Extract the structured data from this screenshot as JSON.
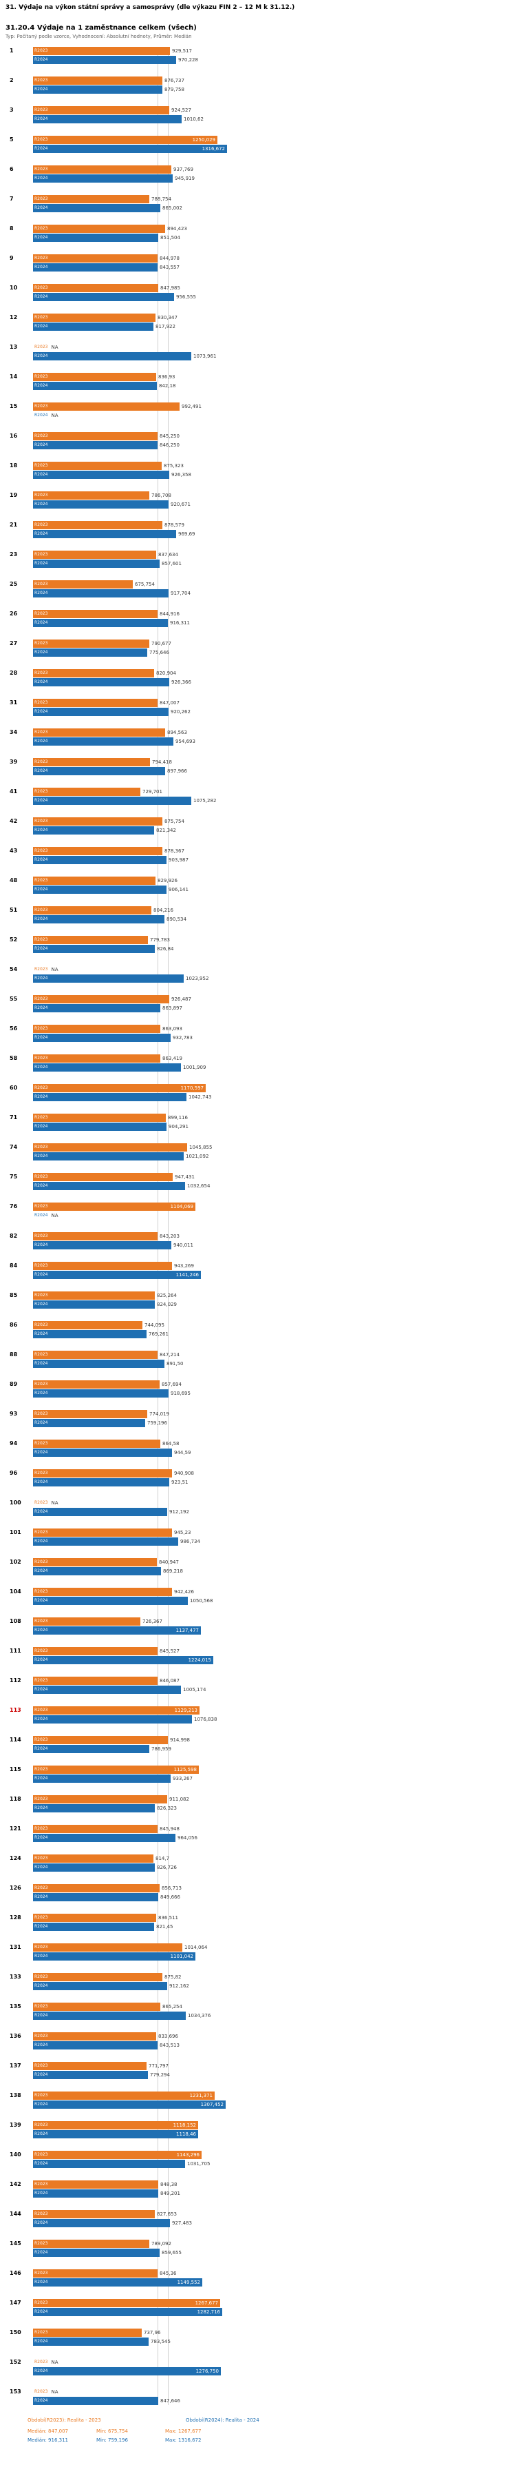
{
  "header": {
    "suptitle": "31. Výdaje na výkon státní správy a samosprávy (dle výkazu FIN 2 – 12 M k 31.12.)",
    "title": "31.20.4 Výdaje na 1 zaměstnance celkem (všech)",
    "subtitle": "Typ: Počítaný podle vzorce, Vyhodnocení: Absolutní hodnoty, Průměr: Medián"
  },
  "series_meta": {
    "r2023": {
      "label": "R2023",
      "color": "#ea7a23"
    },
    "r2024": {
      "label": "R2024",
      "color": "#1f6fb2"
    }
  },
  "rows": [
    {
      "n": "1",
      "r2023": "929,517",
      "r2024": "970,228"
    },
    {
      "n": "2",
      "r2023": "876,737",
      "r2024": "879,758"
    },
    {
      "n": "3",
      "r2023": "924,527",
      "r2024": "1010,62"
    },
    {
      "n": "5",
      "r2023": "1250,029",
      "r2024": "1316,672"
    },
    {
      "n": "6",
      "r2023": "937,769",
      "r2024": "945,919"
    },
    {
      "n": "7",
      "r2023": "788,754",
      "r2024": "865,002"
    },
    {
      "n": "8",
      "r2023": "894,423",
      "r2024": "851,504"
    },
    {
      "n": "9",
      "r2023": "844,978",
      "r2024": "843,557"
    },
    {
      "n": "10",
      "r2023": "847,985",
      "r2024": "956,555"
    },
    {
      "n": "12",
      "r2023": "830,347",
      "r2024": "817,922"
    },
    {
      "n": "13",
      "r2023": "NA",
      "r2024": "1073,961"
    },
    {
      "n": "14",
      "r2023": "836,93",
      "r2024": "842,18"
    },
    {
      "n": "15",
      "r2023": "992,491",
      "r2024": "NA"
    },
    {
      "n": "16",
      "r2023": "845,250",
      "r2024": "846,250"
    },
    {
      "n": "18",
      "r2023": "875,323",
      "r2024": "926,358"
    },
    {
      "n": "19",
      "r2023": "786,708",
      "r2024": "920,671"
    },
    {
      "n": "21",
      "r2023": "878,579",
      "r2024": "969,69"
    },
    {
      "n": "23",
      "r2023": "837,634",
      "r2024": "857,601"
    },
    {
      "n": "25",
      "r2023": "675,754",
      "r2024": "917,704"
    },
    {
      "n": "26",
      "r2023": "844,916",
      "r2024": "916,311"
    },
    {
      "n": "27",
      "r2023": "790,677",
      "r2024": "775,646"
    },
    {
      "n": "28",
      "r2023": "820,904",
      "r2024": "926,366"
    },
    {
      "n": "31",
      "r2023": "847,007",
      "r2024": "920,262"
    },
    {
      "n": "34",
      "r2023": "894,563",
      "r2024": "954,693"
    },
    {
      "n": "39",
      "r2023": "794,418",
      "r2024": "897,966"
    },
    {
      "n": "41",
      "r2023": "729,701",
      "r2024": "1075,282"
    },
    {
      "n": "42",
      "r2023": "875,754",
      "r2024": "821,342"
    },
    {
      "n": "43",
      "r2023": "878,367",
      "r2024": "903,987"
    },
    {
      "n": "48",
      "r2023": "829,926",
      "r2024": "906,141"
    },
    {
      "n": "51",
      "r2023": "804,216",
      "r2024": "890,534"
    },
    {
      "n": "52",
      "r2023": "779,783",
      "r2024": "826,84"
    },
    {
      "n": "54",
      "r2023": "NA",
      "r2024": "1023,952"
    },
    {
      "n": "55",
      "r2023": "926,487",
      "r2024": "863,897"
    },
    {
      "n": "56",
      "r2023": "863,093",
      "r2024": "932,783"
    },
    {
      "n": "58",
      "r2023": "863,419",
      "r2024": "1001,909"
    },
    {
      "n": "60",
      "r2023": "1170,597",
      "r2024": "1042,743"
    },
    {
      "n": "71",
      "r2023": "899,116",
      "r2024": "904,291"
    },
    {
      "n": "74",
      "r2023": "1045,855",
      "r2024": "1021,092"
    },
    {
      "n": "75",
      "r2023": "947,431",
      "r2024": "1032,654"
    },
    {
      "n": "76",
      "r2023": "1104,069",
      "r2024": "NA"
    },
    {
      "n": "82",
      "r2023": "843,203",
      "r2024": "940,011"
    },
    {
      "n": "84",
      "r2023": "943,269",
      "r2024": "1141,246"
    },
    {
      "n": "85",
      "r2023": "825,264",
      "r2024": "824,029"
    },
    {
      "n": "86",
      "r2023": "744,095",
      "r2024": "769,261"
    },
    {
      "n": "88",
      "r2023": "847,214",
      "r2024": "891,50"
    },
    {
      "n": "89",
      "r2023": "857,694",
      "r2024": "918,695"
    },
    {
      "n": "93",
      "r2023": "774,019",
      "r2024": "759,196"
    },
    {
      "n": "94",
      "r2023": "864,58",
      "r2024": "944,59"
    },
    {
      "n": "96",
      "r2023": "940,908",
      "r2024": "923,51"
    },
    {
      "n": "100",
      "r2023": "NA",
      "r2024": "912,192"
    },
    {
      "n": "101",
      "r2023": "945,23",
      "r2024": "986,734"
    },
    {
      "n": "102",
      "r2023": "840,947",
      "r2024": "869,218"
    },
    {
      "n": "104",
      "r2023": "942,426",
      "r2024": "1050,568"
    },
    {
      "n": "108",
      "r2023": "726,367",
      "r2024": "1137,477"
    },
    {
      "n": "111",
      "r2023": "845,527",
      "r2024": "1224,015"
    },
    {
      "n": "112",
      "r2023": "846,087",
      "r2024": "1005,174"
    },
    {
      "n": "113",
      "r2023": "1129,213",
      "r2024": "1076,838",
      "highlight": true
    },
    {
      "n": "114",
      "r2023": "914,998",
      "r2024": "786,959"
    },
    {
      "n": "115",
      "r2023": "1125,598",
      "r2024": "933,267"
    },
    {
      "n": "118",
      "r2023": "911,082",
      "r2024": "826,323"
    },
    {
      "n": "121",
      "r2023": "845,948",
      "r2024": "964,056"
    },
    {
      "n": "124",
      "r2023": "814,7",
      "r2024": "826,726"
    },
    {
      "n": "126",
      "r2023": "856,713",
      "r2024": "849,666"
    },
    {
      "n": "128",
      "r2023": "836,511",
      "r2024": "821,45"
    },
    {
      "n": "131",
      "r2023": "1014,064",
      "r2024": "1101,042"
    },
    {
      "n": "133",
      "r2023": "875,82",
      "r2024": "912,162"
    },
    {
      "n": "135",
      "r2023": "865,254",
      "r2024": "1034,376"
    },
    {
      "n": "136",
      "r2023": "833,696",
      "r2024": "843,513"
    },
    {
      "n": "137",
      "r2023": "771,797",
      "r2024": "779,294"
    },
    {
      "n": "138",
      "r2023": "1231,371",
      "r2024": "1307,452"
    },
    {
      "n": "139",
      "r2023": "1118,152",
      "r2024": "1118,46"
    },
    {
      "n": "140",
      "r2023": "1143,296",
      "r2024": "1031,705"
    },
    {
      "n": "142",
      "r2023": "848,38",
      "r2024": "849,201"
    },
    {
      "n": "144",
      "r2023": "827,653",
      "r2024": "927,483"
    },
    {
      "n": "145",
      "r2023": "789,092",
      "r2024": "859,655"
    },
    {
      "n": "146",
      "r2023": "845,36",
      "r2024": "1149,552"
    },
    {
      "n": "147",
      "r2023": "1267,677",
      "r2024": "1282,716"
    },
    {
      "n": "150",
      "r2023": "737,96",
      "r2024": "783,545"
    },
    {
      "n": "152",
      "r2023": "NA",
      "r2024": "1276,750"
    },
    {
      "n": "153",
      "r2023": "NA",
      "r2024": "847,646"
    }
  ],
  "chart_data": {
    "type": "bar",
    "orientation": "horizontal",
    "title": "31.20.4 Výdaje na 1 zaměstnance celkem (všech)",
    "subtitle": "Typ: Počítaný podle vzorce, Vyhodnocení: Absolutní hodnoty, Průměr: Medián",
    "value_format": "decimal-comma",
    "xlim": [
      0,
      1350
    ],
    "grid": false,
    "median_reference_lines": true,
    "highlighted_category": "113",
    "categories": [
      "1",
      "2",
      "3",
      "5",
      "6",
      "7",
      "8",
      "9",
      "10",
      "12",
      "13",
      "14",
      "15",
      "16",
      "18",
      "19",
      "21",
      "23",
      "25",
      "26",
      "27",
      "28",
      "31",
      "34",
      "39",
      "41",
      "42",
      "43",
      "48",
      "51",
      "52",
      "54",
      "55",
      "56",
      "58",
      "60",
      "71",
      "74",
      "75",
      "76",
      "82",
      "84",
      "85",
      "86",
      "88",
      "89",
      "93",
      "94",
      "96",
      "100",
      "101",
      "102",
      "104",
      "108",
      "111",
      "112",
      "113",
      "114",
      "115",
      "118",
      "121",
      "124",
      "126",
      "128",
      "131",
      "133",
      "135",
      "136",
      "137",
      "138",
      "139",
      "140",
      "142",
      "144",
      "145",
      "146",
      "147",
      "150",
      "152",
      "153"
    ],
    "series": [
      {
        "name": "R2023",
        "color": "#ea7a23",
        "values": [
          929.517,
          876.737,
          924.527,
          1250.029,
          937.769,
          788.754,
          894.423,
          844.978,
          847.985,
          830.347,
          null,
          836.93,
          992.491,
          845.25,
          875.323,
          786.708,
          878.579,
          837.634,
          675.754,
          844.916,
          790.677,
          820.904,
          847.007,
          894.563,
          794.418,
          729.701,
          875.754,
          878.367,
          829.926,
          804.216,
          779.783,
          null,
          926.487,
          863.093,
          863.419,
          1170.597,
          899.116,
          1045.855,
          947.431,
          1104.069,
          843.203,
          943.269,
          825.264,
          744.095,
          847.214,
          857.694,
          774.019,
          864.58,
          940.908,
          null,
          945.23,
          840.947,
          942.426,
          726.367,
          845.527,
          846.087,
          1129.213,
          914.998,
          1125.598,
          911.082,
          845.948,
          814.7,
          856.713,
          836.511,
          1014.064,
          875.82,
          865.254,
          833.696,
          771.797,
          1231.371,
          1118.152,
          1143.296,
          848.38,
          827.653,
          789.092,
          845.36,
          1267.677,
          737.96,
          null,
          null
        ]
      },
      {
        "name": "R2024",
        "color": "#1f6fb2",
        "values": [
          970.228,
          879.758,
          1010.62,
          1316.672,
          945.919,
          865.002,
          851.504,
          843.557,
          956.555,
          817.922,
          1073.961,
          842.18,
          null,
          846.25,
          926.358,
          920.671,
          969.69,
          857.601,
          917.704,
          916.311,
          775.646,
          926.366,
          920.262,
          954.693,
          897.966,
          1075.282,
          821.342,
          903.987,
          906.141,
          890.534,
          826.84,
          1023.952,
          863.897,
          932.783,
          1001.909,
          1042.743,
          904.291,
          1021.092,
          1032.654,
          null,
          940.011,
          1141.246,
          824.029,
          769.261,
          891.5,
          918.695,
          759.196,
          944.59,
          923.51,
          912.192,
          986.734,
          869.218,
          1050.568,
          1137.477,
          1224.015,
          1005.174,
          1076.838,
          786.959,
          933.267,
          826.323,
          964.056,
          826.726,
          849.666,
          821.45,
          1101.042,
          912.162,
          1034.376,
          843.513,
          779.294,
          1307.452,
          1118.46,
          1031.705,
          849.201,
          927.483,
          859.655,
          1149.552,
          1282.716,
          783.545,
          1276.75,
          847.646
        ]
      }
    ],
    "stats": {
      "R2023": {
        "median": 847.007,
        "min": 675.754,
        "max": 1267.677
      },
      "R2024": {
        "median": 916.311,
        "min": 759.196,
        "max": 1316.672
      }
    }
  },
  "footer": {
    "legend2023": "Období(R2023): Realita - 2023",
    "legend2024": "Období(R2024): Realita - 2024",
    "stats2023": {
      "median": "Medián: 847,007",
      "min": "Min: 675,754",
      "max": "Max: 1267,677"
    },
    "stats2024": {
      "median": "Medián: 916,311",
      "min": "Min: 759,196",
      "max": "Max: 1316,672"
    }
  }
}
